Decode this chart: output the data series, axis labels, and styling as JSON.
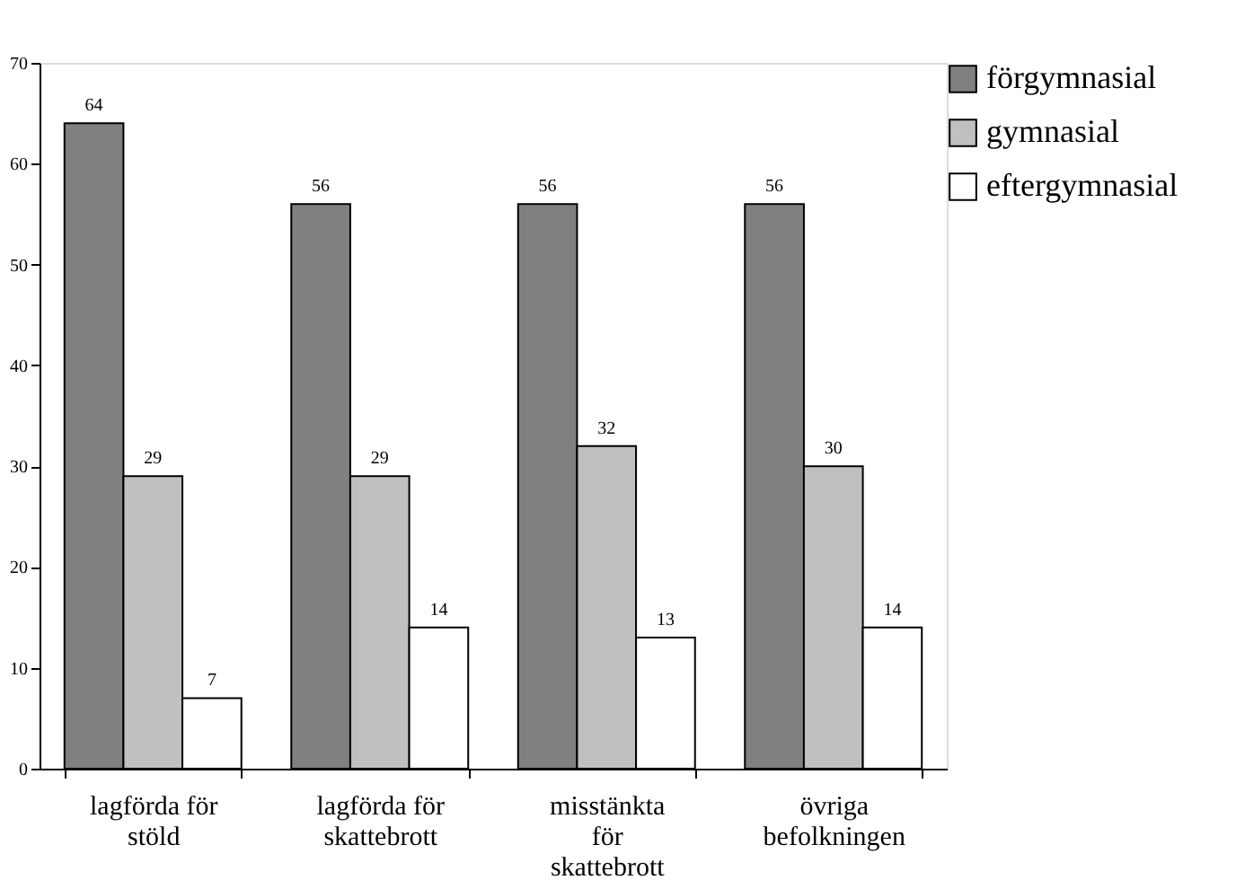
{
  "chart_data": {
    "type": "bar",
    "categories": [
      "lagförda för stöld",
      "lagförda för skattebrott",
      "misstänkta för skattebrott",
      "övriga befolkningen"
    ],
    "series": [
      {
        "name": "förgymnasial",
        "color": "#808080",
        "values": [
          64,
          56,
          56,
          56
        ]
      },
      {
        "name": "gymnasial",
        "color": "#c0c0c0",
        "values": [
          29,
          29,
          32,
          30
        ]
      },
      {
        "name": "eftergymnasial",
        "color": "#ffffff",
        "values": [
          7,
          14,
          13,
          14
        ]
      }
    ],
    "ylim": [
      0,
      70
    ],
    "yticks": [
      0,
      10,
      20,
      30,
      40,
      50,
      60,
      70
    ],
    "data_labels": true,
    "grid": false,
    "legend": "top right"
  }
}
